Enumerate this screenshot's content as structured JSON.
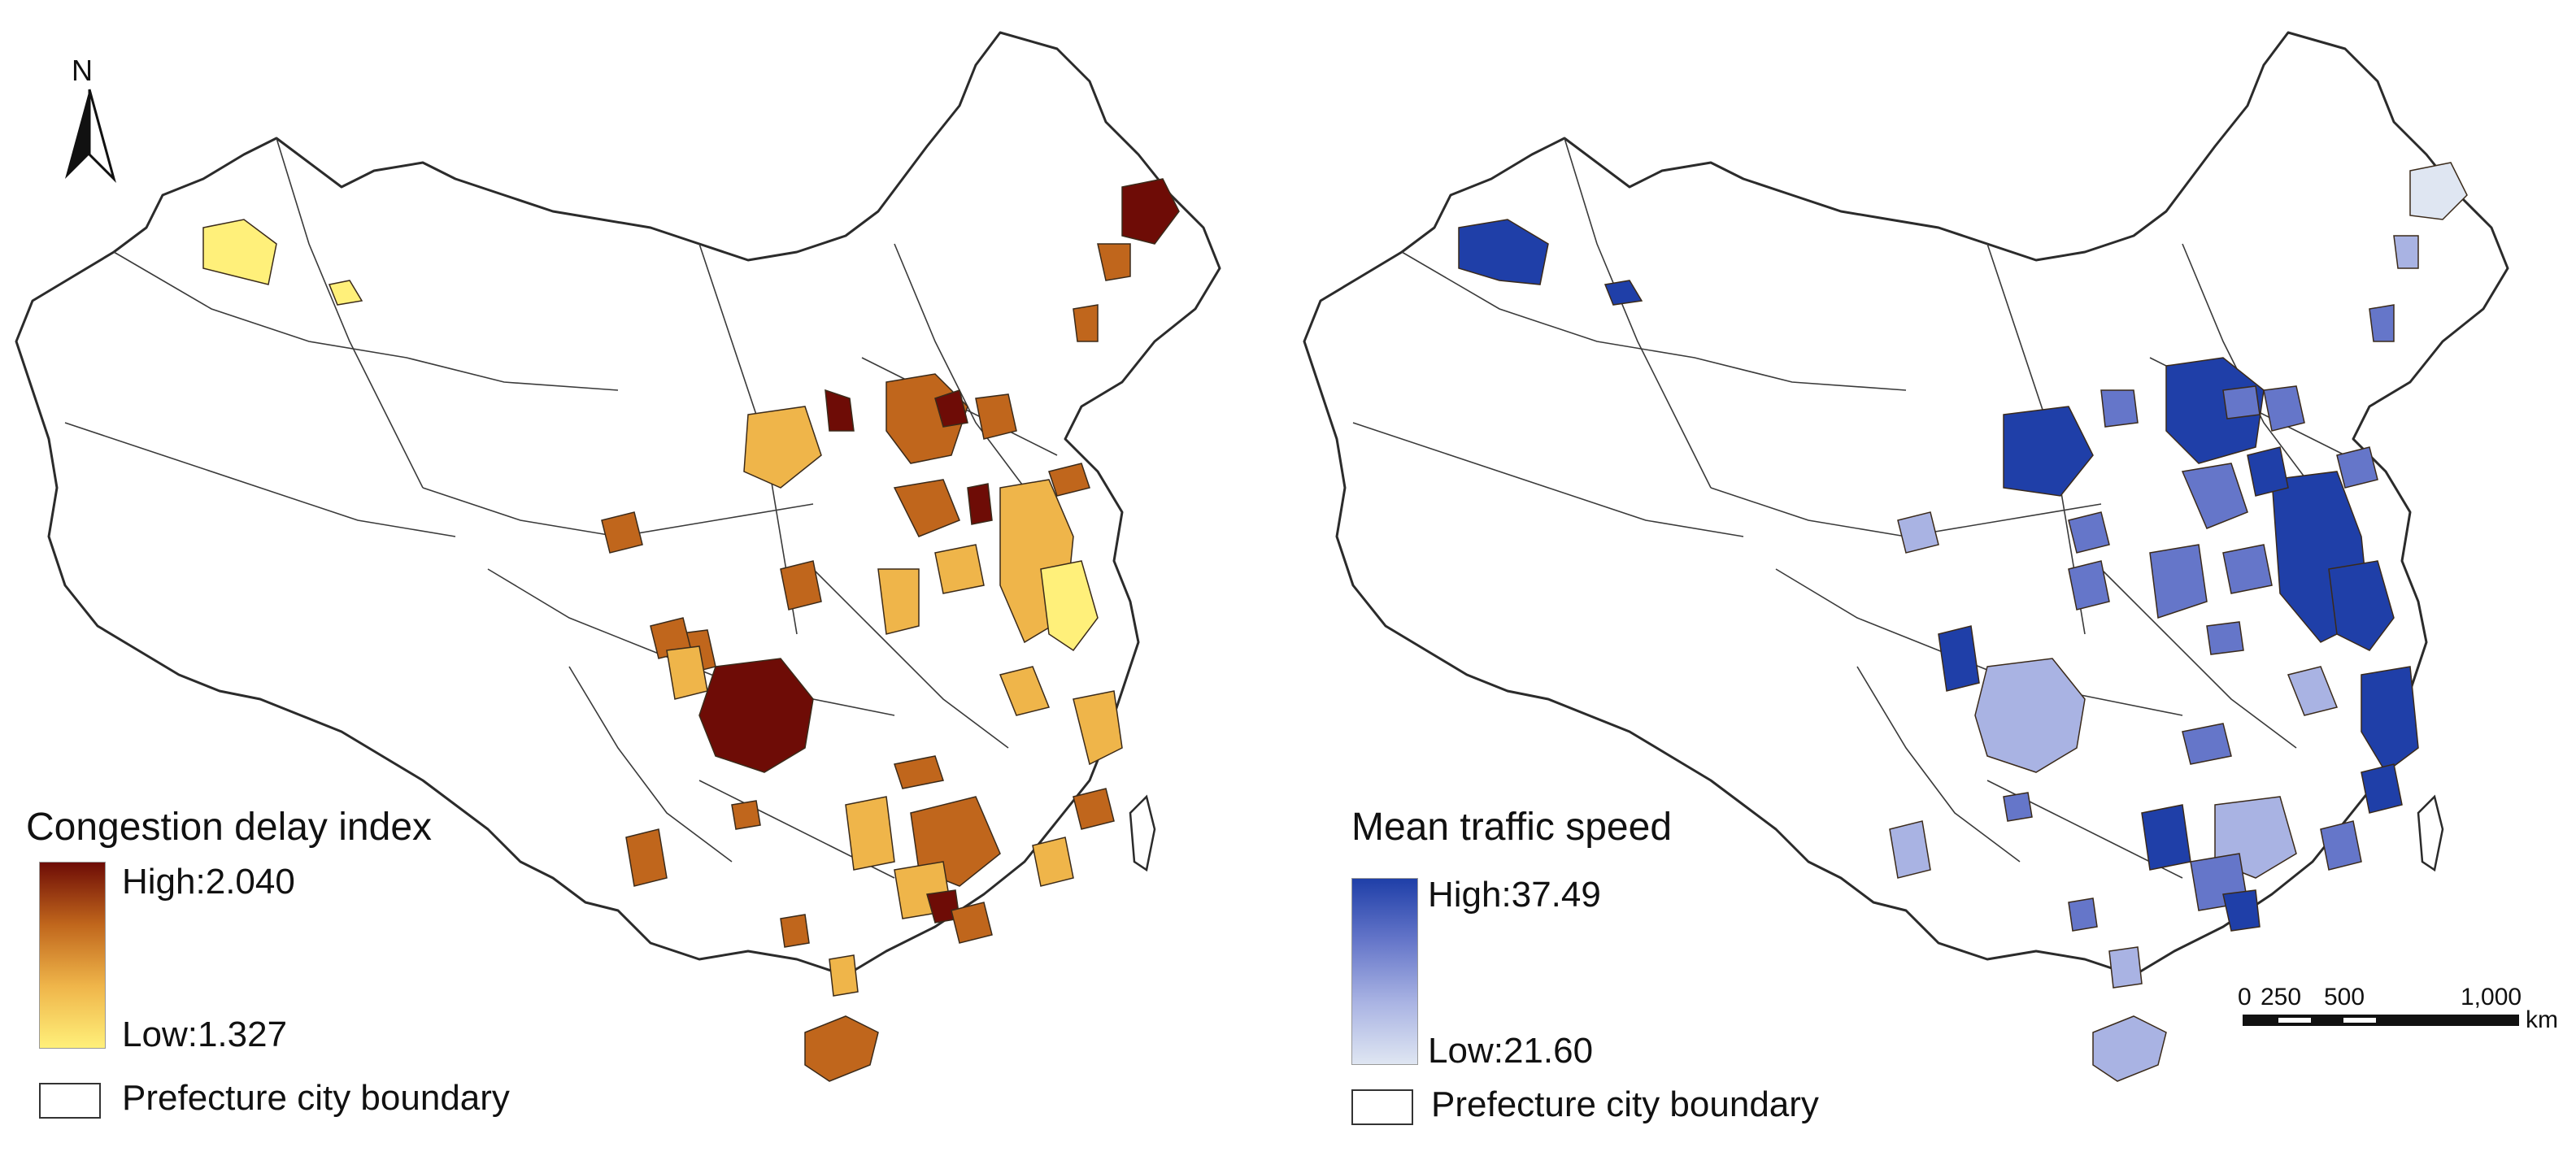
{
  "left_map": {
    "legend_title": "Congestion delay index",
    "high_label": "High:2.040",
    "low_label": "Low:1.327",
    "ramp_colors": [
      "#6e0c06",
      "#c0661c",
      "#efb54a",
      "#fff07a"
    ],
    "boundary_label": "Prefecture city boundary",
    "north_label": "N"
  },
  "right_map": {
    "legend_title": "Mean traffic speed",
    "high_label": "High:37.49",
    "low_label": "Low:21.60",
    "ramp_colors": [
      "#1f3fa8",
      "#6576c9",
      "#a9b3e3",
      "#dfe6f2"
    ],
    "boundary_label": "Prefecture city boundary"
  },
  "scale_bar": {
    "ticks": [
      "0",
      "250",
      "500",
      "1,000"
    ],
    "unit": "km"
  }
}
